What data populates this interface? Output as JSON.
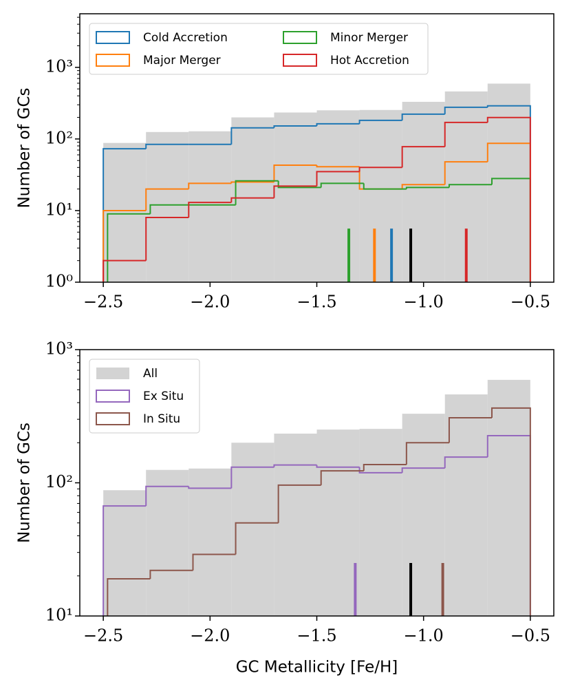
{
  "chart_data": [
    {
      "type": "histogram",
      "ylabel": "Number of GCs",
      "log_y": true,
      "xlim": [
        -2.61,
        -0.39
      ],
      "ylim": [
        1,
        5600
      ],
      "xticks": [
        {
          "value": -2.5,
          "label": "−2.5"
        },
        {
          "value": -2.0,
          "label": "−2.0"
        },
        {
          "value": -1.5,
          "label": "−1.5"
        },
        {
          "value": -1.0,
          "label": "−1.0"
        },
        {
          "value": -0.5,
          "label": "−0.5"
        }
      ],
      "yticks": [
        {
          "value": 1,
          "label": "10⁰"
        },
        {
          "value": 10,
          "label": "10¹"
        },
        {
          "value": 100,
          "label": "10²"
        },
        {
          "value": 1000,
          "label": "10³"
        }
      ],
      "yminorticks": [
        2,
        3,
        4,
        5,
        6,
        7,
        8,
        9,
        20,
        30,
        40,
        50,
        60,
        70,
        80,
        90,
        200,
        300,
        400,
        500,
        600,
        700,
        800,
        900,
        2000,
        3000,
        4000,
        5000
      ],
      "legend": "upper left",
      "legend_columns": 2,
      "series": [
        {
          "color": "#d3d3d3",
          "filled": true,
          "bins": [
            -2.5,
            -2.3,
            -2.1,
            -1.9,
            -1.7,
            -1.5,
            -1.3,
            -1.1,
            -0.9,
            -0.7,
            -0.5
          ],
          "values": [
            88,
            125,
            128,
            200,
            234,
            251,
            254,
            330,
            461,
            593
          ]
        },
        {
          "name": "Cold Accretion",
          "color": "#1f77b4",
          "bins": [
            -2.5,
            -2.3,
            -2.1,
            -1.9,
            -1.7,
            -1.5,
            -1.3,
            -1.1,
            -0.9,
            -0.7,
            -0.5
          ],
          "values": [
            73,
            84,
            84,
            143,
            152,
            163,
            182,
            222,
            277,
            290
          ]
        },
        {
          "name": "Major Merger",
          "color": "#ff7f0e",
          "bins": [
            -2.5,
            -2.3,
            -2.1,
            -1.9,
            -1.7,
            -1.5,
            -1.3,
            -1.1,
            -0.9,
            -0.7,
            -0.5
          ],
          "values": [
            10,
            20,
            24,
            25,
            43,
            41,
            20,
            23,
            48,
            87
          ]
        },
        {
          "name": "Minor Merger",
          "color": "#2ca02c",
          "bins": [
            -2.48,
            -2.28,
            -2.08,
            -1.88,
            -1.68,
            -1.48,
            -1.28,
            -1.08,
            -0.88,
            -0.68,
            -0.5
          ],
          "values": [
            9,
            12,
            12,
            26,
            21,
            24,
            20,
            21,
            23,
            28
          ]
        },
        {
          "name": "Hot Accretion",
          "color": "#d62728",
          "bins": [
            -2.5,
            -2.3,
            -2.1,
            -1.9,
            -1.7,
            -1.5,
            -1.3,
            -1.1,
            -0.9,
            -0.7,
            -0.5
          ],
          "values": [
            2,
            8,
            13,
            15,
            22,
            35,
            40,
            78,
            170,
            199
          ]
        }
      ],
      "median_height": 5.6,
      "medians": [
        {
          "x": -1.35,
          "color": "#2ca02c"
        },
        {
          "x": -1.23,
          "color": "#ff7f0e"
        },
        {
          "x": -1.15,
          "color": "#1f77b4"
        },
        {
          "x": -1.06,
          "color": "#000000"
        },
        {
          "x": -0.8,
          "color": "#d62728"
        }
      ]
    },
    {
      "type": "histogram",
      "ylabel": "Number of GCs",
      "xlabel": "GC Metallicity [Fe/H]",
      "log_y": true,
      "xlim": [
        -2.61,
        -0.39
      ],
      "ylim": [
        10,
        1000
      ],
      "xticks": [
        {
          "value": -2.5,
          "label": "−2.5"
        },
        {
          "value": -2.0,
          "label": "−2.0"
        },
        {
          "value": -1.5,
          "label": "−1.5"
        },
        {
          "value": -1.0,
          "label": "−1.0"
        },
        {
          "value": -0.5,
          "label": "−0.5"
        }
      ],
      "yticks": [
        {
          "value": 10,
          "label": "10¹"
        },
        {
          "value": 100,
          "label": "10²"
        },
        {
          "value": 1000,
          "label": "10³"
        }
      ],
      "yminorticks": [
        20,
        30,
        40,
        50,
        60,
        70,
        80,
        90,
        200,
        300,
        400,
        500,
        600,
        700,
        800,
        900
      ],
      "legend": "upper left",
      "legend_columns": 1,
      "series": [
        {
          "name": "All",
          "color": "#d3d3d3",
          "filled": true,
          "bins": [
            -2.5,
            -2.3,
            -2.1,
            -1.9,
            -1.7,
            -1.5,
            -1.3,
            -1.1,
            -0.9,
            -0.7,
            -0.5
          ],
          "values": [
            88,
            125,
            128,
            200,
            234,
            251,
            254,
            330,
            461,
            593
          ]
        },
        {
          "name": "Ex Situ",
          "color": "#9467bd",
          "bins": [
            -2.5,
            -2.3,
            -2.1,
            -1.9,
            -1.7,
            -1.5,
            -1.3,
            -1.1,
            -0.9,
            -0.7,
            -0.5
          ],
          "values": [
            67,
            94,
            91,
            131,
            136,
            131,
            119,
            129,
            156,
            226
          ]
        },
        {
          "name": "In Situ",
          "color": "#8c564b",
          "bins": [
            -2.48,
            -2.28,
            -2.08,
            -1.88,
            -1.68,
            -1.48,
            -1.28,
            -1.08,
            -0.88,
            -0.68,
            -0.5
          ],
          "values": [
            19,
            22,
            29,
            50,
            96,
            123,
            137,
            200,
            308,
            364
          ]
        }
      ],
      "median_height": 25,
      "medians": [
        {
          "x": -1.32,
          "color": "#9467bd"
        },
        {
          "x": -1.06,
          "color": "#000000"
        },
        {
          "x": -0.91,
          "color": "#8c564b"
        }
      ]
    }
  ]
}
